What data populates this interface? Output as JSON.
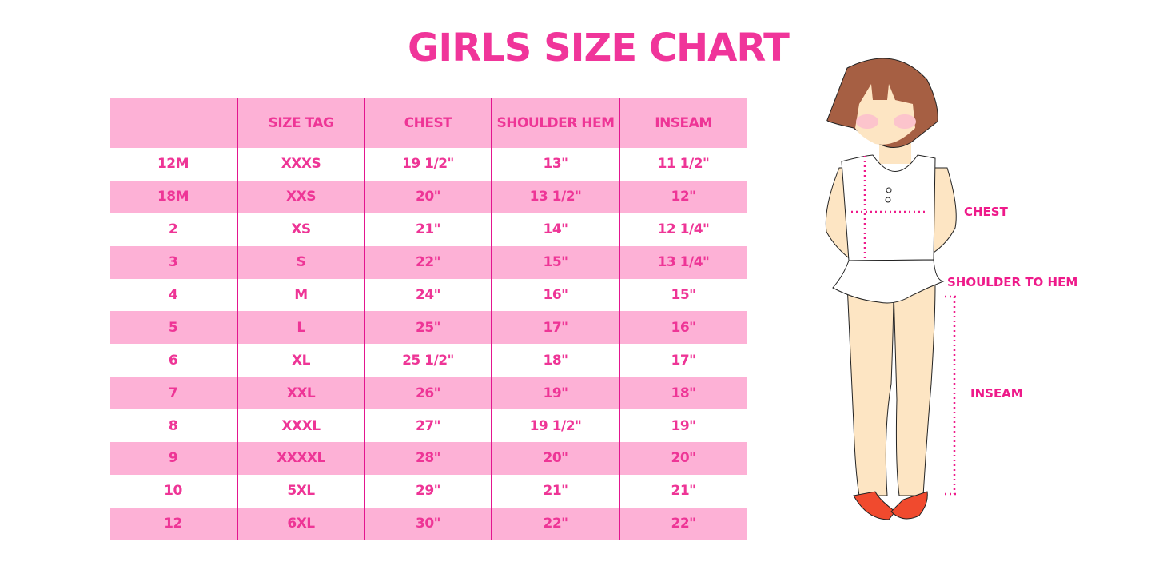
{
  "title": "GIRLS SIZE CHART",
  "table": {
    "headers": [
      "",
      "SIZE TAG",
      "CHEST",
      "SHOULDER HEM",
      "INSEAM"
    ],
    "rows": [
      [
        "12M",
        "XXXS",
        "19 1/2\"",
        "13\"",
        "11 1/2\""
      ],
      [
        "18M",
        "XXS",
        "20\"",
        "13 1/2\"",
        "12\""
      ],
      [
        "2",
        "XS",
        "21\"",
        "14\"",
        "12 1/4\""
      ],
      [
        "3",
        "S",
        "22\"",
        "15\"",
        "13 1/4\""
      ],
      [
        "4",
        "M",
        "24\"",
        "16\"",
        "15\""
      ],
      [
        "5",
        "L",
        "25\"",
        "17\"",
        "16\""
      ],
      [
        "6",
        "XL",
        "25 1/2\"",
        "18\"",
        "17\""
      ],
      [
        "7",
        "XXL",
        "26\"",
        "19\"",
        "18\""
      ],
      [
        "8",
        "XXXL",
        "27\"",
        "19 1/2\"",
        "19\""
      ],
      [
        "9",
        "XXXXL",
        "28\"",
        "20\"",
        "20\""
      ],
      [
        "10",
        "5XL",
        "29\"",
        "21\"",
        "21\""
      ],
      [
        "12",
        "6XL",
        "30\"",
        "22\"",
        "22\""
      ]
    ]
  },
  "illustration": {
    "chest_label": "CHEST",
    "shoulder_label": "SHOULDER TO HEM",
    "inseam_label": "INSEAM"
  },
  "colors": {
    "accent": "#ee3596",
    "row_pink": "#fdb1d6",
    "divider": "#e3168f"
  }
}
